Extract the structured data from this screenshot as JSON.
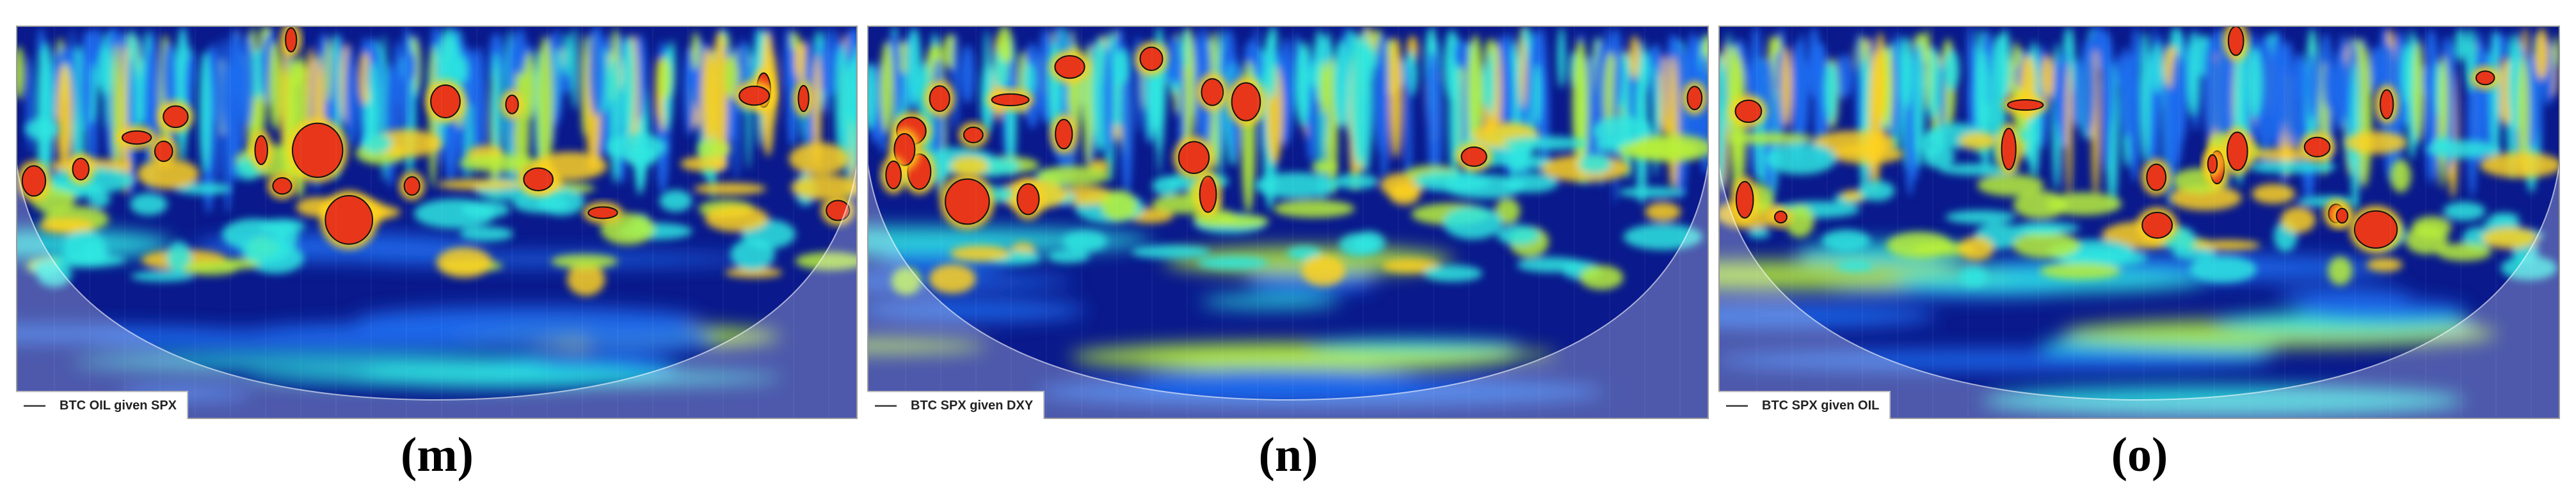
{
  "chart_data": [
    {
      "type": "heatmap",
      "caption": "(m)",
      "legend": "BTC OIL given SPX",
      "variant": 1
    },
    {
      "type": "heatmap",
      "caption": "(n)",
      "legend": "BTC SPX given DXY",
      "variant": 2
    },
    {
      "type": "heatmap",
      "caption": "(o)",
      "legend": "BTC SPX given OIL",
      "variant": 3
    }
  ],
  "colors": {
    "low": "#0a1a8c",
    "mid_low": "#1e6cf0",
    "mid": "#2ee6e0",
    "mid_high": "#b8f03a",
    "high": "#ffd21e",
    "peak": "#e8361a",
    "cone_overlay": "#ffffff"
  }
}
